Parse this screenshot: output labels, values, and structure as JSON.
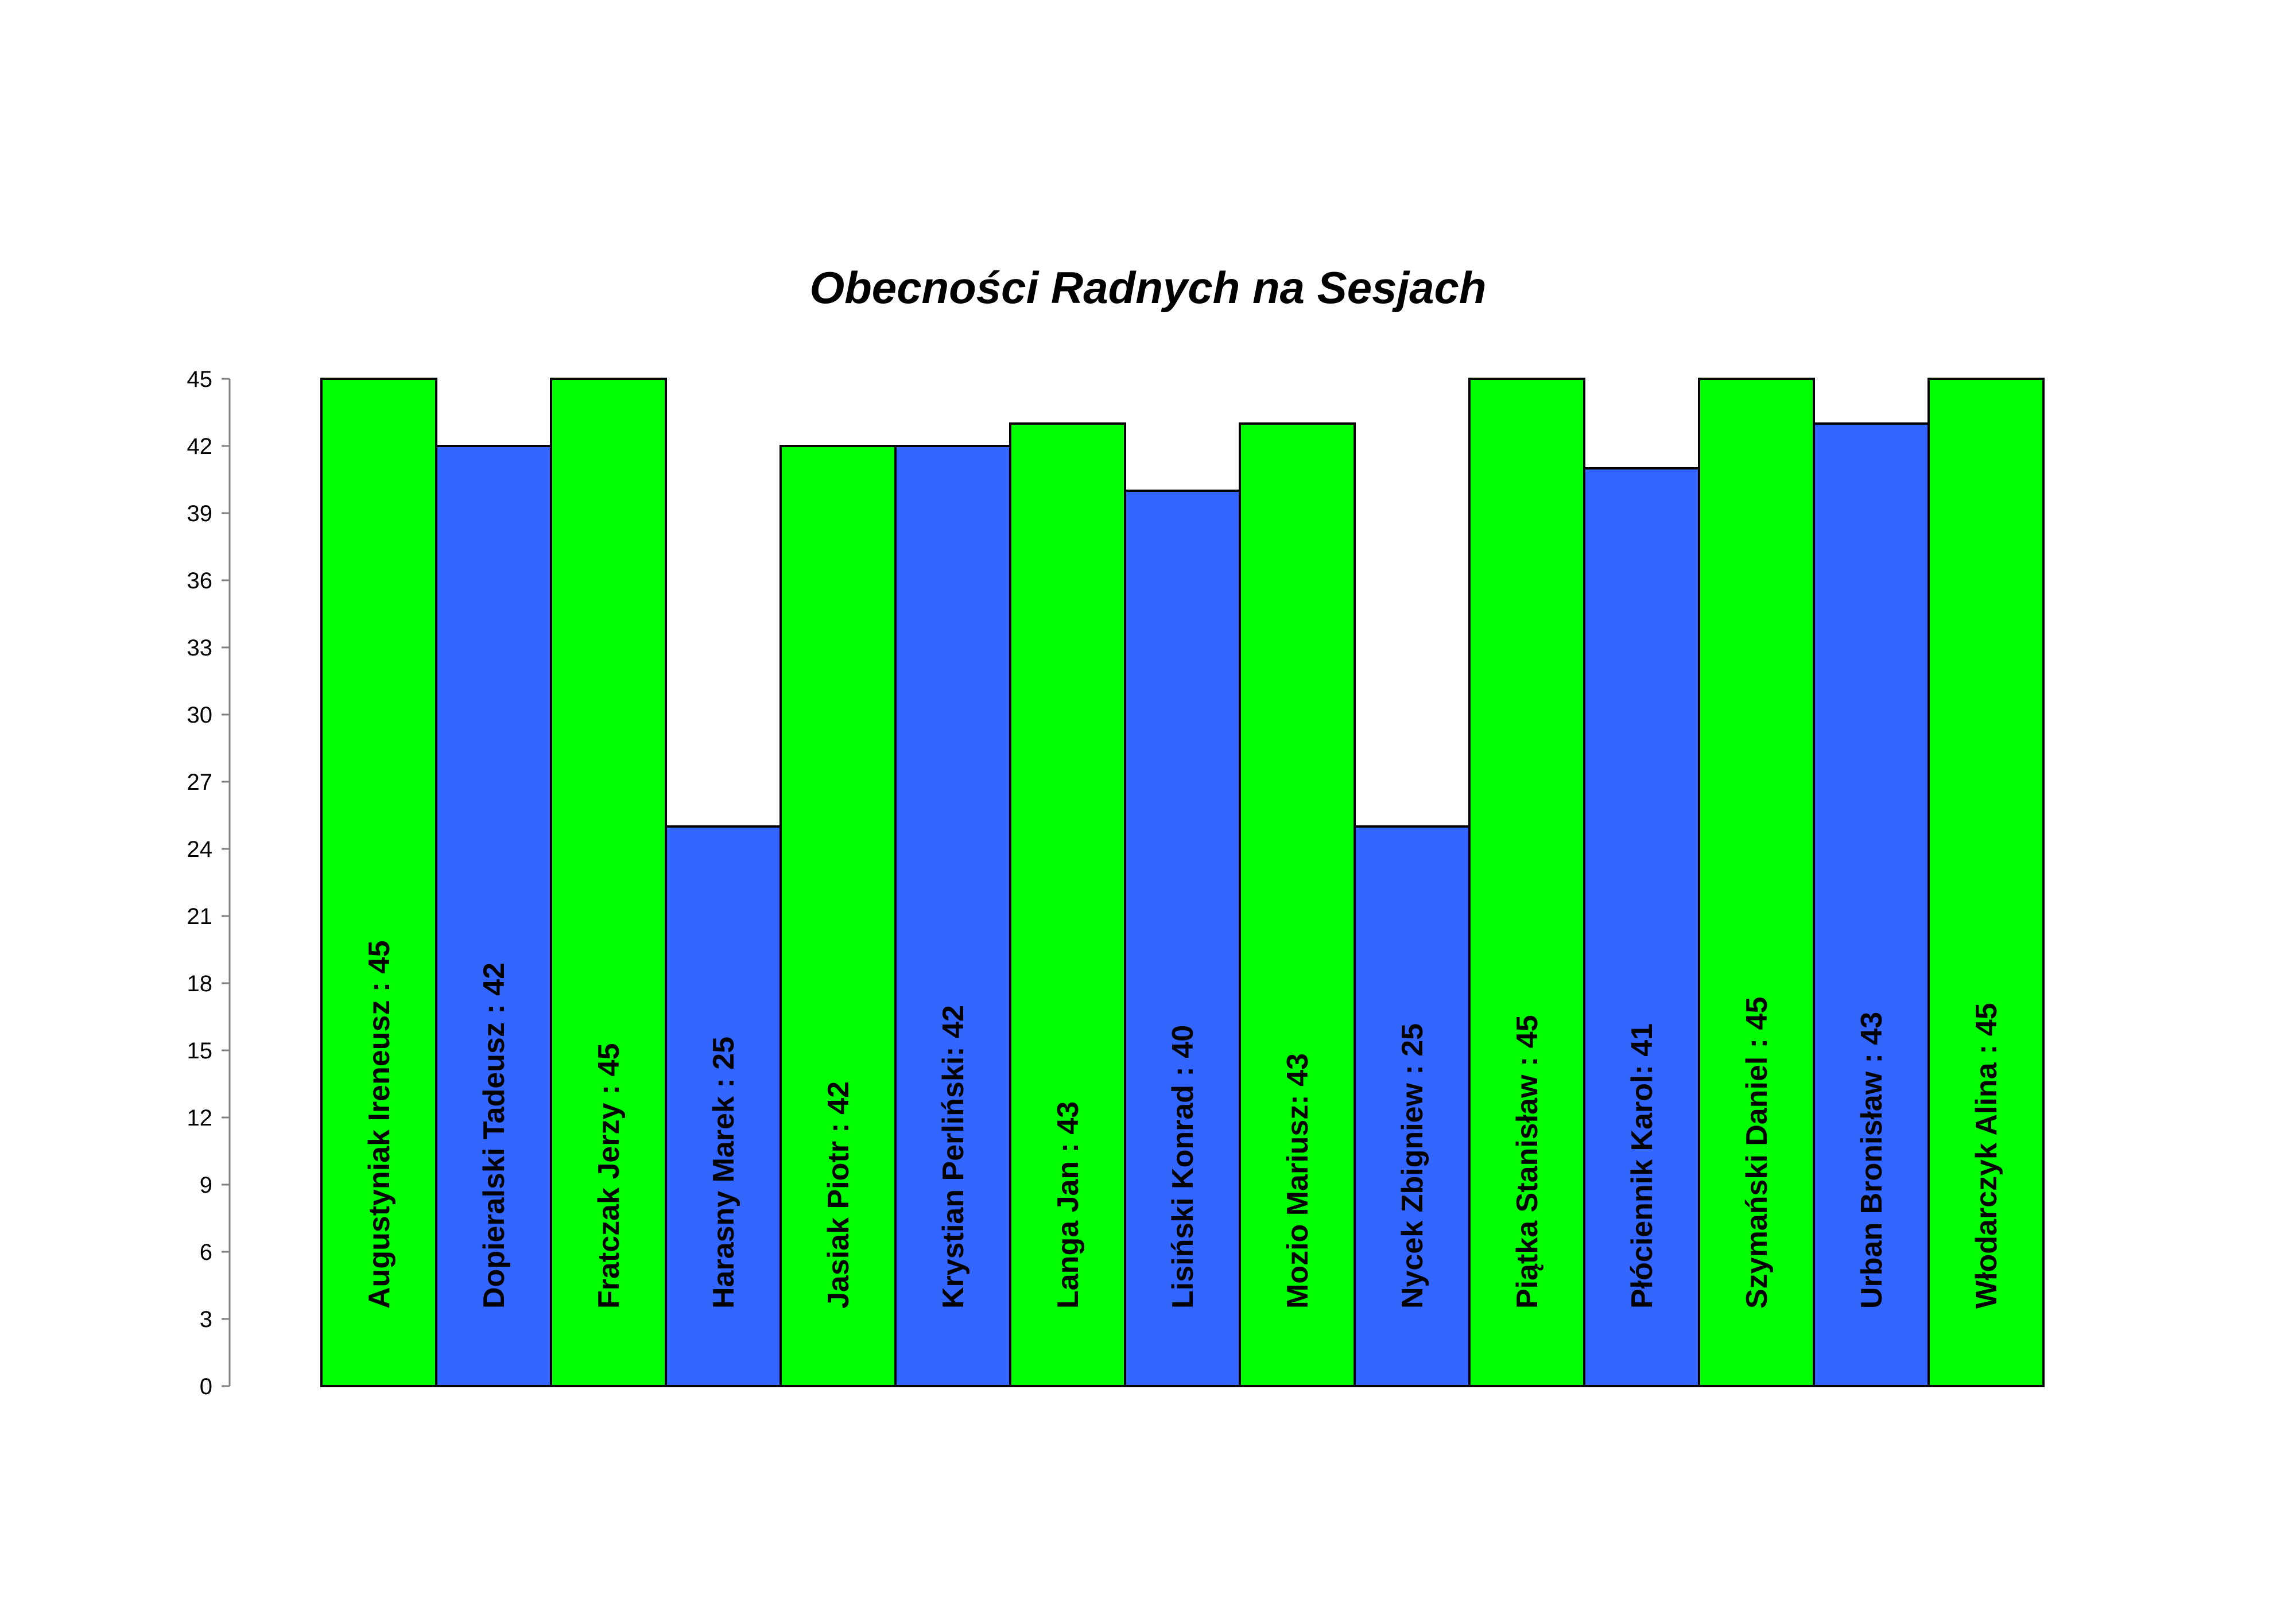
{
  "chart_data": {
    "type": "bar",
    "title": "Obecności Radnych na Sesjach",
    "xlabel": "",
    "ylabel": "",
    "ylim": [
      0,
      45
    ],
    "yticks": [
      0,
      3,
      6,
      9,
      12,
      15,
      18,
      21,
      24,
      27,
      30,
      33,
      36,
      39,
      42,
      45
    ],
    "grid": false,
    "legend": "none",
    "colors": {
      "odd": "#00ff00",
      "even": "#3366ff",
      "outline": "#000000"
    },
    "categories": [
      "Augustyniak Ireneusz : 45",
      "Dopieralski Tadeusz : 42",
      "Fratczak Jerzy : 45",
      "Harasny Marek : 25",
      "Jasiak Piotr : 42",
      "Krystian Perliński: 42",
      "Langa Jan : 43",
      "Lisiński Konrad : 40",
      "Mozio Mariusz: 43",
      "Nycek Zbigniew : 25",
      "Piątka Stanisław : 45",
      "Płóciennik Karol: 41",
      "Szymański Daniel : 45",
      "Urban Bronisław : 43",
      "Włodarczyk Alina : 45"
    ],
    "values": [
      45,
      42,
      45,
      25,
      42,
      42,
      43,
      40,
      43,
      25,
      45,
      41,
      45,
      43,
      45
    ]
  }
}
